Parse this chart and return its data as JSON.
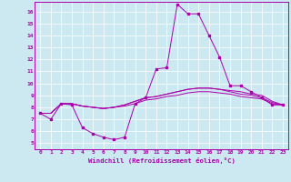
{
  "xlabel": "Windchill (Refroidissement éolien,°C)",
  "x_ticks": [
    0,
    1,
    2,
    3,
    4,
    5,
    6,
    7,
    8,
    9,
    10,
    11,
    12,
    13,
    14,
    15,
    16,
    17,
    18,
    19,
    20,
    21,
    22,
    23
  ],
  "ylim": [
    4.5,
    16.8
  ],
  "y_ticks": [
    5,
    6,
    7,
    8,
    9,
    10,
    11,
    12,
    13,
    14,
    15,
    16
  ],
  "background_color": "#cce8f0",
  "line_color": "#aa00aa",
  "grid_color": "#ffffff",
  "line_main": [
    7.5,
    7.0,
    8.3,
    8.2,
    6.3,
    5.8,
    5.5,
    5.3,
    5.5,
    8.3,
    8.8,
    11.2,
    11.3,
    16.6,
    15.8,
    15.8,
    14.0,
    12.2,
    9.8,
    9.8,
    9.3,
    8.8,
    8.2,
    8.2
  ],
  "line2": [
    7.5,
    7.5,
    8.3,
    8.3,
    8.1,
    8.0,
    7.9,
    8.0,
    8.2,
    8.5,
    8.8,
    8.9,
    9.1,
    9.3,
    9.5,
    9.6,
    9.6,
    9.5,
    9.4,
    9.3,
    9.1,
    9.0,
    8.5,
    8.2
  ],
  "line3": [
    7.5,
    7.5,
    8.3,
    8.3,
    8.1,
    8.0,
    7.9,
    8.0,
    8.2,
    8.5,
    8.8,
    8.9,
    9.1,
    9.3,
    9.5,
    9.6,
    9.6,
    9.5,
    9.3,
    9.1,
    9.0,
    8.8,
    8.4,
    8.2
  ],
  "line4": [
    7.5,
    7.5,
    8.3,
    8.3,
    8.1,
    8.0,
    7.9,
    8.0,
    8.1,
    8.3,
    8.6,
    8.7,
    8.9,
    9.0,
    9.2,
    9.3,
    9.3,
    9.2,
    9.1,
    8.9,
    8.8,
    8.7,
    8.3,
    8.2
  ]
}
